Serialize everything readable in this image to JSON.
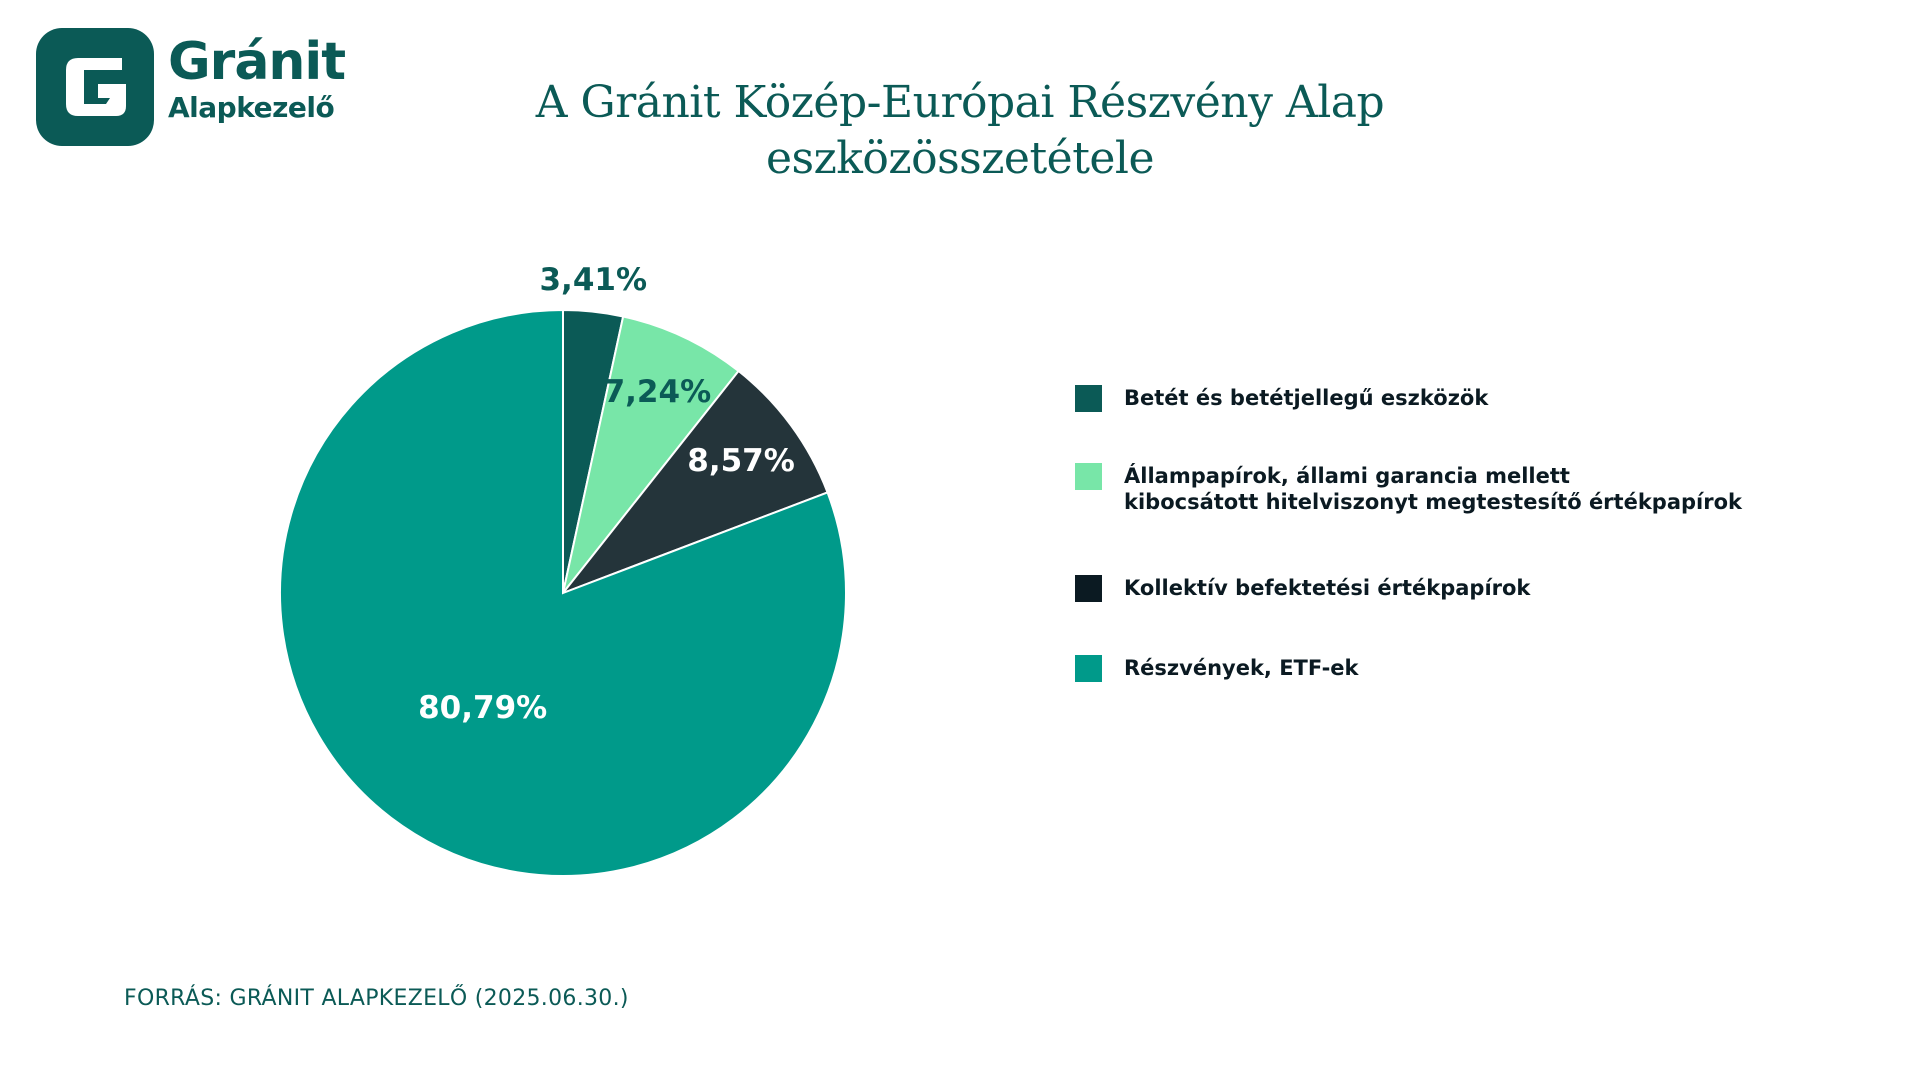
{
  "logo": {
    "word": "Gránit",
    "sub": "Alapkezelő"
  },
  "title": {
    "line1": "A Gránit Közép-Európai Részvény Alap",
    "line2": "eszközösszetétele"
  },
  "source": "FORRÁS: GRÁNIT ALAPKEZELŐ (2025.06.30.)",
  "colors": {
    "brand": "#0b5a56",
    "deposit": "#0b5a56",
    "bonds": "#78e6a8",
    "funds": "#24343a",
    "funds_legend": "#0b1a22",
    "equities": "#009a8a"
  },
  "chart_data": {
    "type": "pie",
    "start_angle_deg": 0,
    "direction": "clockwise",
    "slices": [
      {
        "name": "Betét és betétjellegű eszközök",
        "value": 3.41,
        "label": "3,41%",
        "color": "#0b5a56",
        "legend_color": "#0b5a56",
        "label_color": "#0b5a56",
        "label_placement": "outside"
      },
      {
        "name": "Állampapírok, állami garancia mellett\nkibocsátott hitelviszonyt megtestesítő értékpapírok",
        "value": 7.24,
        "label": "7,24%",
        "color": "#78e6a8",
        "legend_color": "#78e6a8",
        "label_color": "#0b5a56",
        "label_placement": "inside"
      },
      {
        "name": "Kollektív befektetési értékpapírok",
        "value": 8.57,
        "label": "8,57%",
        "color": "#24343a",
        "legend_color": "#0b1a22",
        "label_color": "#ffffff",
        "label_placement": "inside"
      },
      {
        "name": "Részvények, ETF-ek",
        "value": 80.79,
        "label": "80,79%",
        "color": "#009a8a",
        "legend_color": "#009a8a",
        "label_color": "#ffffff",
        "label_placement": "inside"
      }
    ],
    "legend_position": "right"
  }
}
